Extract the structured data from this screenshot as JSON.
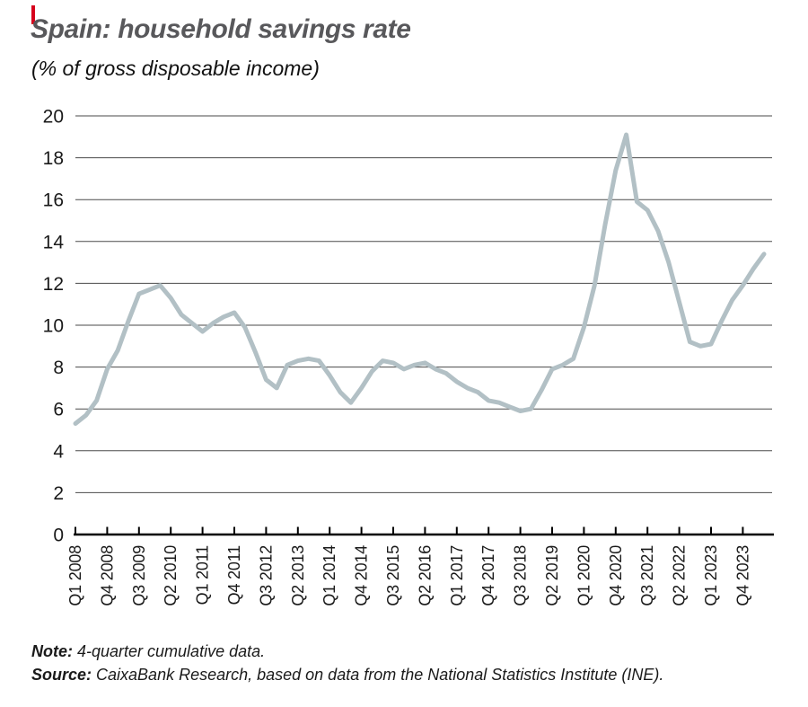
{
  "header": {
    "title": "Spain: household savings rate",
    "subtitle": "(% of gross disposable income)",
    "accent_color": "#d6001c"
  },
  "chart_data": {
    "type": "line",
    "title": "Spain: household savings rate",
    "unit_label": "(% of gross disposable income)",
    "grid": "horizontal",
    "legend_position": "none",
    "line_color": "#b2c0c5",
    "grid_color": "#4a4a4a",
    "axis_color": "#000000",
    "y_axis": {
      "min": 0,
      "max": 20,
      "step": 2,
      "tick_labels": [
        "0",
        "2",
        "4",
        "6",
        "8",
        "10",
        "12",
        "14",
        "16",
        "18",
        "20"
      ]
    },
    "x_axis": {
      "tick_labels": [
        "Q1 2008",
        "Q4 2008",
        "Q3 2009",
        "Q2 2010",
        "Q1 2011",
        "Q4 2011",
        "Q3 2012",
        "Q2 2013",
        "Q1 2014",
        "Q4 2014",
        "Q3 2015",
        "Q2 2016",
        "Q1 2017",
        "Q4 2017",
        "Q3 2018",
        "Q2 2019",
        "Q1 2020",
        "Q4 2020",
        "Q3 2021",
        "Q2 2022",
        "Q1 2023",
        "Q4 2023"
      ],
      "label_every_n_quarters": 3
    },
    "series": [
      {
        "name": "Household savings rate",
        "x": [
          "Q1 2008",
          "Q2 2008",
          "Q3 2008",
          "Q4 2008",
          "Q1 2009",
          "Q2 2009",
          "Q3 2009",
          "Q4 2009",
          "Q1 2010",
          "Q2 2010",
          "Q3 2010",
          "Q4 2010",
          "Q1 2011",
          "Q2 2011",
          "Q3 2011",
          "Q4 2011",
          "Q1 2012",
          "Q2 2012",
          "Q3 2012",
          "Q4 2012",
          "Q1 2013",
          "Q2 2013",
          "Q3 2013",
          "Q4 2013",
          "Q1 2014",
          "Q2 2014",
          "Q3 2014",
          "Q4 2014",
          "Q1 2015",
          "Q2 2015",
          "Q3 2015",
          "Q4 2015",
          "Q1 2016",
          "Q2 2016",
          "Q3 2016",
          "Q4 2016",
          "Q1 2017",
          "Q2 2017",
          "Q3 2017",
          "Q4 2017",
          "Q1 2018",
          "Q2 2018",
          "Q3 2018",
          "Q4 2018",
          "Q1 2019",
          "Q2 2019",
          "Q3 2019",
          "Q4 2019",
          "Q1 2020",
          "Q2 2020",
          "Q3 2020",
          "Q4 2020",
          "Q1 2021",
          "Q2 2021",
          "Q3 2021",
          "Q4 2021",
          "Q1 2022",
          "Q2 2022",
          "Q3 2022",
          "Q4 2022",
          "Q1 2023",
          "Q2 2023",
          "Q3 2023",
          "Q4 2023",
          "Q1 2024",
          "Q2 2024"
        ],
        "values": [
          5.3,
          5.7,
          6.4,
          7.9,
          8.8,
          10.2,
          11.5,
          11.7,
          11.9,
          11.3,
          10.5,
          10.1,
          9.7,
          10.1,
          10.4,
          10.6,
          9.9,
          8.7,
          7.4,
          7.0,
          8.1,
          8.3,
          8.4,
          8.3,
          7.6,
          6.8,
          6.3,
          7.0,
          7.8,
          8.3,
          8.2,
          7.9,
          8.1,
          8.2,
          7.9,
          7.7,
          7.3,
          7.0,
          6.8,
          6.4,
          6.3,
          6.1,
          5.9,
          6.0,
          6.9,
          7.9,
          8.1,
          8.4,
          9.9,
          11.9,
          14.8,
          17.4,
          19.1,
          15.9,
          15.5,
          14.5,
          13.0,
          11.1,
          9.2,
          9.0,
          9.1,
          10.2,
          11.2,
          11.9,
          12.7,
          13.4
        ]
      }
    ]
  },
  "footer": {
    "note_label": "Note:",
    "note_text": "4-quarter cumulative data.",
    "source_label": "Source:",
    "source_text": "CaixaBank Research, based on data from the National Statistics Institute (INE)."
  }
}
